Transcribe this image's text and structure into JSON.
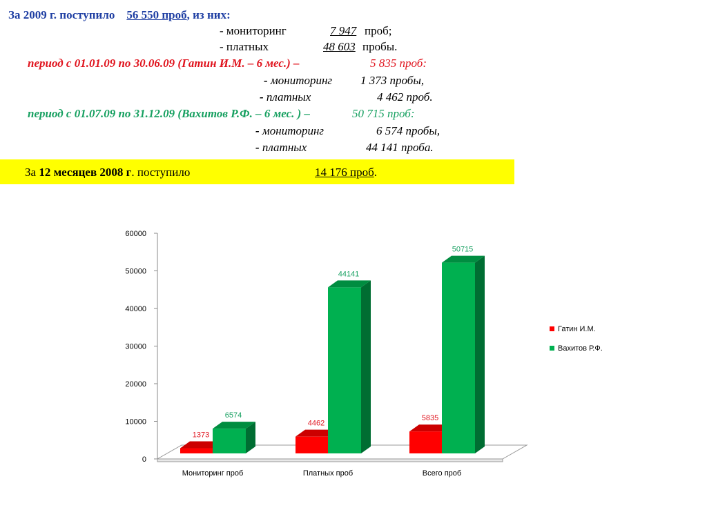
{
  "header": {
    "line1": {
      "prefix": "За 2009 г. поступило",
      "total": "56 550 проб",
      "suffix": ",  из них:"
    },
    "line2": {
      "label": "- мониторинг",
      "value": "7 947",
      "unit": "проб;"
    },
    "line3": {
      "label": "- платных",
      "value": "48 603",
      "unit": "пробы."
    },
    "period1": {
      "label": "период с 01.01.09 по 30.06.09 (Гатин И.М. – 6 мес.) –",
      "value": "5 835 проб:"
    },
    "period1_items": [
      {
        "dash": "-",
        "label": "мониторинг",
        "value": "1 373 пробы,"
      },
      {
        "dash": "-",
        "label": "платных",
        "value": "4 462 проб."
      }
    ],
    "period2": {
      "label": "период с 01.07.09 по 31.12.09 (Вахитов Р.Ф. – 6 мес. ) –",
      "value": "50 715 проб:"
    },
    "period2_items": [
      {
        "dash": "-",
        "label": "мониторинг",
        "value": "6 574  пробы,"
      },
      {
        "dash": "-",
        "label": "платных",
        "value": "44 141 проба."
      }
    ]
  },
  "summary": {
    "prefix": "За",
    "bold": "12 месяцев 2008 г",
    "middle": ". поступило",
    "value": "14 176  проб",
    "end": "."
  },
  "colors": {
    "red": "#ff0000",
    "green": "#00b050",
    "highlight": "#ffff00"
  },
  "chart_data": {
    "type": "bar",
    "categories": [
      "Мониторинг проб",
      "Платных проб",
      "Всего проб"
    ],
    "series": [
      {
        "name": "Гатин И.М.",
        "values": [
          1373,
          4462,
          5835
        ],
        "color": "#ff0000"
      },
      {
        "name": "Вахитов Р.Ф.",
        "values": [
          6574,
          44141,
          50715
        ],
        "color": "#00b050"
      }
    ],
    "ylim": [
      0,
      60000
    ],
    "yticks": [
      "0",
      "10000",
      "20000",
      "30000",
      "40000",
      "50000",
      "60000"
    ],
    "data_labels": [
      [
        "1373",
        "4462",
        "5835"
      ],
      [
        "6574",
        "44141",
        "50715"
      ]
    ],
    "legend_position": "right",
    "grid": false
  }
}
